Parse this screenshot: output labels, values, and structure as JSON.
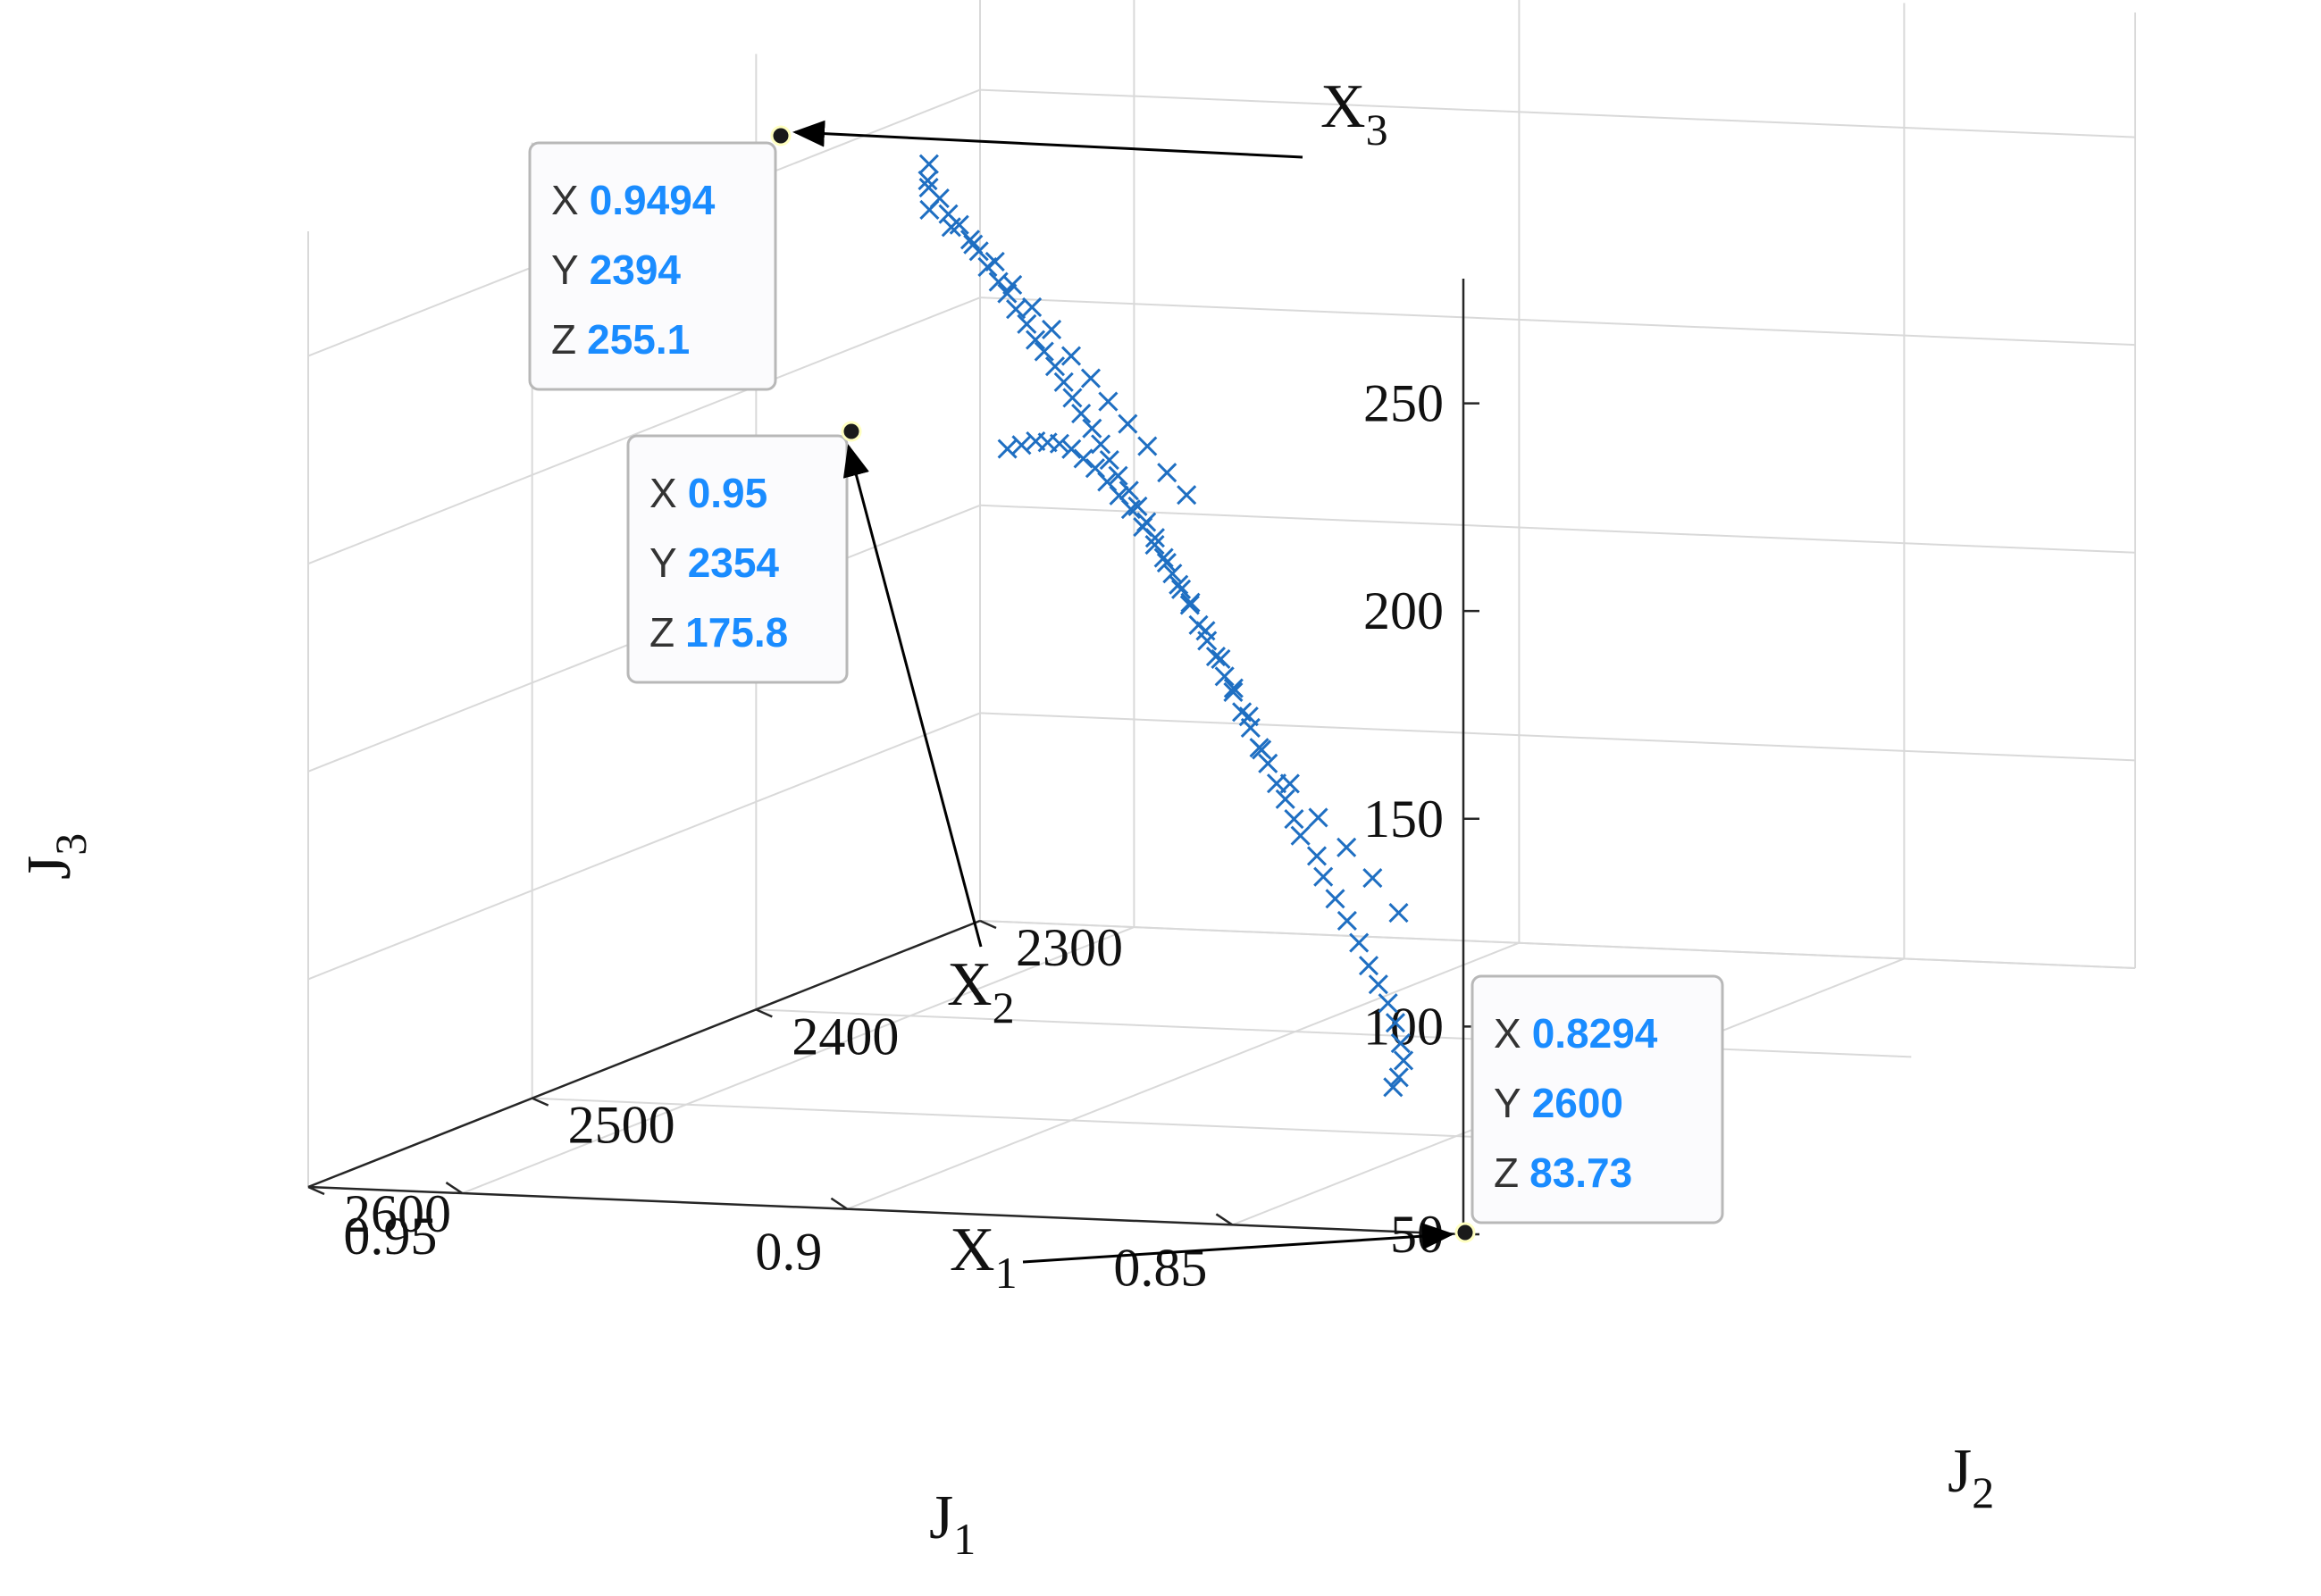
{
  "chart_data": {
    "type": "scatter",
    "dimensions": 3,
    "title": "",
    "xlabel": {
      "main": "J",
      "sub": "1"
    },
    "ylabel": {
      "main": "J",
      "sub": "2"
    },
    "zlabel": {
      "main": "J",
      "sub": "3"
    },
    "xlim": [
      0.82,
      0.97
    ],
    "ylim": [
      2300,
      2600
    ],
    "zlim": [
      50,
      280
    ],
    "xticks": [
      "0.95",
      "0.9",
      "0.85"
    ],
    "yticks": [
      "2300",
      "2400",
      "2500",
      "2600"
    ],
    "zticks": [
      "50",
      "100",
      "150",
      "200",
      "250"
    ],
    "grid": true,
    "marker": "x",
    "marker_color": "#1f6fc2",
    "series": [
      {
        "points": [
          [
            0.949,
            2395,
            254
          ],
          [
            0.948,
            2399,
            251
          ],
          [
            0.947,
            2402,
            250
          ],
          [
            0.945,
            2404,
            248
          ],
          [
            0.943,
            2407,
            245
          ],
          [
            0.941,
            2409,
            243
          ],
          [
            0.939,
            2411,
            240
          ],
          [
            0.937,
            2414,
            238
          ],
          [
            0.935,
            2417,
            235
          ],
          [
            0.933,
            2419,
            232
          ],
          [
            0.931,
            2422,
            230
          ],
          [
            0.929,
            2425,
            227
          ],
          [
            0.927,
            2427,
            224
          ],
          [
            0.925,
            2430,
            221
          ],
          [
            0.923,
            2433,
            219
          ],
          [
            0.921,
            2435,
            216
          ],
          [
            0.919,
            2438,
            213
          ],
          [
            0.917,
            2441,
            210
          ],
          [
            0.915,
            2444,
            207
          ],
          [
            0.913,
            2446,
            204
          ],
          [
            0.911,
            2449,
            201
          ],
          [
            0.909,
            2452,
            198
          ],
          [
            0.907,
            2455,
            195
          ],
          [
            0.905,
            2457,
            192
          ],
          [
            0.903,
            2460,
            189
          ],
          [
            0.901,
            2463,
            186
          ],
          [
            0.899,
            2466,
            183
          ],
          [
            0.897,
            2469,
            179
          ],
          [
            0.895,
            2472,
            176
          ],
          [
            0.893,
            2475,
            173
          ],
          [
            0.891,
            2478,
            170
          ],
          [
            0.889,
            2481,
            166
          ],
          [
            0.887,
            2484,
            163
          ],
          [
            0.885,
            2487,
            160
          ],
          [
            0.883,
            2490,
            156
          ],
          [
            0.881,
            2493,
            153
          ],
          [
            0.879,
            2496,
            149
          ],
          [
            0.877,
            2499,
            146
          ],
          [
            0.875,
            2502,
            142
          ],
          [
            0.873,
            2505,
            139
          ],
          [
            0.871,
            2508,
            135
          ],
          [
            0.869,
            2511,
            132
          ],
          [
            0.867,
            2514,
            128
          ],
          [
            0.865,
            2518,
            125
          ],
          [
            0.862,
            2521,
            121
          ],
          [
            0.86,
            2525,
            117
          ],
          [
            0.857,
            2530,
            113
          ],
          [
            0.854,
            2535,
            109
          ],
          [
            0.851,
            2540,
            105
          ],
          [
            0.848,
            2546,
            101
          ],
          [
            0.845,
            2552,
            98
          ],
          [
            0.842,
            2558,
            95
          ],
          [
            0.839,
            2565,
            92
          ],
          [
            0.836,
            2573,
            89
          ],
          [
            0.833,
            2582,
            87
          ],
          [
            0.831,
            2591,
            85
          ],
          [
            0.83,
            2597,
            84
          ],
          [
            0.944,
            2412,
            247
          ],
          [
            0.94,
            2416,
            244
          ],
          [
            0.936,
            2420,
            241
          ],
          [
            0.932,
            2424,
            238
          ],
          [
            0.928,
            2430,
            234
          ],
          [
            0.924,
            2435,
            230
          ],
          [
            0.92,
            2440,
            226
          ],
          [
            0.916,
            2445,
            221
          ],
          [
            0.912,
            2450,
            217
          ],
          [
            0.908,
            2456,
            213
          ],
          [
            0.904,
            2461,
            209
          ],
          [
            0.9,
            2466,
            205
          ],
          [
            0.896,
            2471,
            200
          ],
          [
            0.892,
            2476,
            196
          ],
          [
            0.949,
            2360,
            178
          ],
          [
            0.946,
            2364,
            180
          ],
          [
            0.943,
            2368,
            182
          ],
          [
            0.94,
            2373,
            183
          ],
          [
            0.937,
            2378,
            184
          ],
          [
            0.934,
            2383,
            184
          ],
          [
            0.931,
            2388,
            183
          ],
          [
            0.928,
            2393,
            182
          ],
          [
            0.925,
            2398,
            180
          ],
          [
            0.922,
            2403,
            178
          ],
          [
            0.919,
            2408,
            176
          ],
          [
            0.916,
            2413,
            173
          ],
          [
            0.913,
            2418,
            170
          ],
          [
            0.91,
            2423,
            167
          ],
          [
            0.907,
            2428,
            163
          ],
          [
            0.904,
            2433,
            160
          ],
          [
            0.9,
            2440,
            155
          ],
          [
            0.896,
            2447,
            150
          ],
          [
            0.892,
            2455,
            145
          ],
          [
            0.888,
            2462,
            140
          ],
          [
            0.884,
            2470,
            134
          ],
          [
            0.878,
            2478,
            128
          ],
          [
            0.872,
            2486,
            122
          ],
          [
            0.866,
            2494,
            117
          ],
          [
            0.86,
            2503,
            112
          ],
          [
            0.854,
            2512,
            106
          ]
        ]
      }
    ],
    "datatips": [
      {
        "keys": [
          "X",
          "Y",
          "Z"
        ],
        "values": [
          "0.9494",
          "2394",
          "255.1"
        ],
        "point": [
          0.9494,
          2394,
          255.1
        ]
      },
      {
        "keys": [
          "X",
          "Y",
          "Z"
        ],
        "values": [
          "0.95",
          "2354",
          "175.8"
        ],
        "point": [
          0.95,
          2354,
          175.8
        ]
      },
      {
        "keys": [
          "X",
          "Y",
          "Z"
        ],
        "values": [
          "0.8294",
          "2600",
          "83.73"
        ],
        "point": [
          0.8294,
          2600,
          83.73
        ]
      }
    ],
    "annotations": [
      {
        "main": "X",
        "sub": "3",
        "target": "tip-0"
      },
      {
        "main": "X",
        "sub": "2",
        "target": "tip-1"
      },
      {
        "main": "X",
        "sub": "1",
        "target": "tip-2"
      }
    ]
  }
}
